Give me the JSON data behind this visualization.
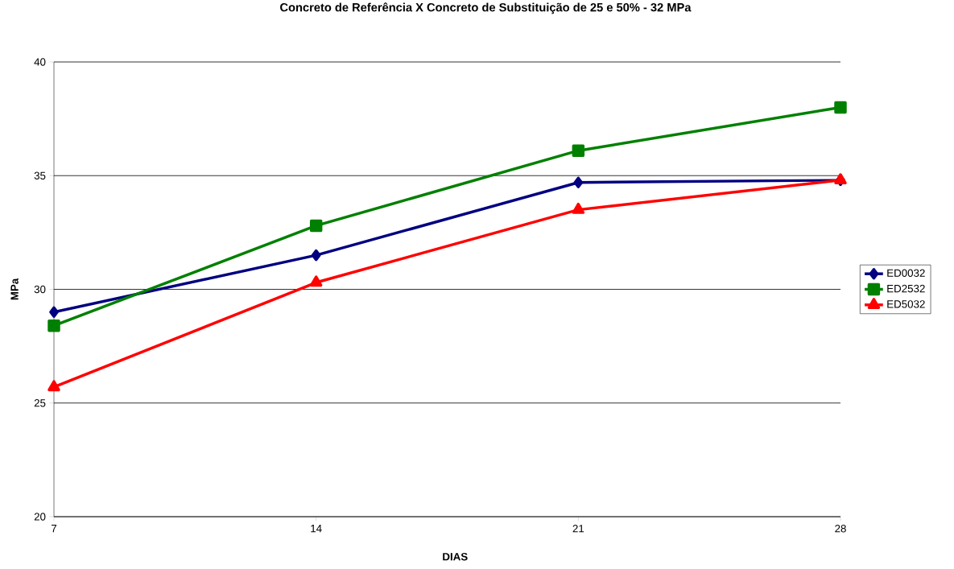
{
  "chart_data": {
    "type": "line",
    "title": "Concreto de Referência X Concreto de Substituição de 25 e 50% - 32 MPa",
    "xlabel": "DIAS",
    "ylabel": "MPa",
    "x": [
      7,
      14,
      21,
      28
    ],
    "series": [
      {
        "name": "ED0032",
        "color": "#000080",
        "marker": "diamond",
        "values": [
          29.0,
          31.5,
          34.7,
          34.8
        ]
      },
      {
        "name": "ED2532",
        "color": "#008000",
        "marker": "square",
        "values": [
          28.4,
          32.8,
          36.1,
          38.0
        ]
      },
      {
        "name": "ED5032",
        "color": "#ff0000",
        "marker": "triangle",
        "values": [
          25.7,
          30.3,
          33.5,
          34.8
        ]
      }
    ],
    "xlim": [
      7,
      28
    ],
    "xticks": [
      7,
      14,
      21,
      28
    ],
    "ylim": [
      20,
      40
    ],
    "yticks": [
      20,
      25,
      30,
      35,
      40
    ],
    "grid": "y",
    "legend": "right",
    "line_style": "solid"
  }
}
